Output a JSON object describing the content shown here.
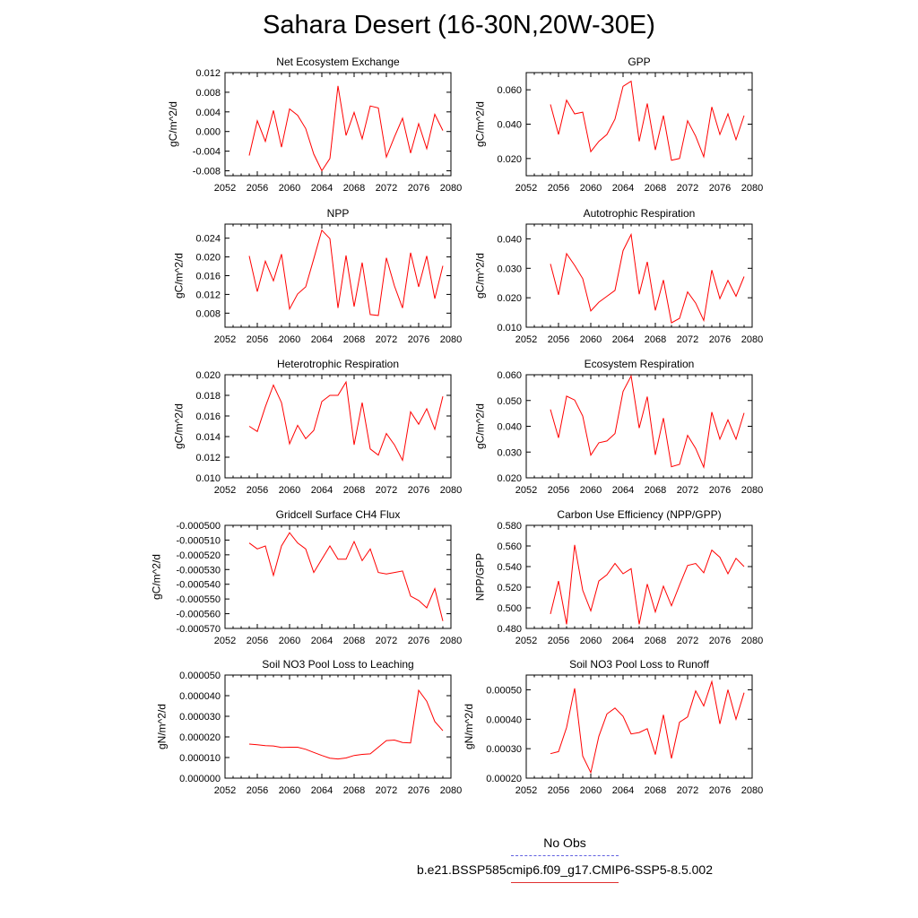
{
  "title": "Sahara Desert (16-30N,20W-30E)",
  "legend": {
    "items": [
      {
        "label": "No Obs",
        "color": "#6060e0",
        "dashed": true
      },
      {
        "label": "b.e21.BSSP585cmip6.f09_g17.CMIP6-SSP5-8.5.002",
        "color": "#e03030",
        "dashed": false
      }
    ]
  },
  "chart_data": [
    {
      "type": "line",
      "title": "Net Ecosystem Exchange",
      "ylabel": "gC/m^2/d",
      "xlabel": "",
      "xlim": [
        2052,
        2080
      ],
      "ylim": [
        -0.009,
        0.012
      ],
      "xticks": [
        "2052",
        "2056",
        "2060",
        "2064",
        "2068",
        "2072",
        "2076",
        "2080"
      ],
      "yticks": [
        "0.012",
        "0.008",
        "0.004",
        "0.000",
        "-0.004",
        "-0.008"
      ],
      "series": [
        {
          "color": "#ff0000",
          "x": [
            2055,
            2056,
            2057,
            2058,
            2059,
            2060,
            2061,
            2062,
            2063,
            2064,
            2065,
            2066,
            2067,
            2068,
            2069,
            2070,
            2071,
            2072,
            2073,
            2074,
            2075,
            2076,
            2077,
            2078,
            2079
          ],
          "y": [
            -0.0049,
            0.0022,
            -0.002,
            0.0043,
            -0.0032,
            0.0046,
            0.0033,
            0.0006,
            -0.0046,
            -0.008,
            -0.0055,
            0.0093,
            -0.0008,
            0.0039,
            -0.0015,
            0.0052,
            0.0048,
            -0.0052,
            -0.0011,
            0.0027,
            -0.0044,
            0.0016,
            -0.0035,
            0.0035,
            0.0002
          ]
        }
      ]
    },
    {
      "type": "line",
      "title": "GPP",
      "ylabel": "gC/m^2/d",
      "xlabel": "",
      "xlim": [
        2052,
        2080
      ],
      "ylim": [
        0.01,
        0.07
      ],
      "xticks": [
        "2052",
        "2056",
        "2060",
        "2064",
        "2068",
        "2072",
        "2076",
        "2080"
      ],
      "yticks": [
        "0.060",
        "0.040",
        "0.020"
      ],
      "series": [
        {
          "color": "#ff0000",
          "x": [
            2055,
            2056,
            2057,
            2058,
            2059,
            2060,
            2061,
            2062,
            2063,
            2064,
            2065,
            2066,
            2067,
            2068,
            2069,
            2070,
            2071,
            2072,
            2073,
            2074,
            2075,
            2076,
            2077,
            2078,
            2079
          ],
          "y": [
            0.0515,
            0.034,
            0.054,
            0.046,
            0.047,
            0.024,
            0.03,
            0.034,
            0.043,
            0.062,
            0.065,
            0.03,
            0.052,
            0.025,
            0.045,
            0.019,
            0.02,
            0.042,
            0.033,
            0.021,
            0.05,
            0.034,
            0.046,
            0.031,
            0.045
          ]
        }
      ]
    },
    {
      "type": "line",
      "title": "NPP",
      "ylabel": "gC/m^2/d",
      "xlabel": "",
      "xlim": [
        2052,
        2080
      ],
      "ylim": [
        0.005,
        0.027
      ],
      "xticks": [
        "2052",
        "2056",
        "2060",
        "2064",
        "2068",
        "2072",
        "2076",
        "2080"
      ],
      "yticks": [
        "0.024",
        "0.020",
        "0.016",
        "0.012",
        "0.008"
      ],
      "series": [
        {
          "color": "#ff0000",
          "x": [
            2055,
            2056,
            2057,
            2058,
            2059,
            2060,
            2061,
            2062,
            2063,
            2064,
            2065,
            2066,
            2067,
            2068,
            2069,
            2070,
            2071,
            2072,
            2073,
            2074,
            2075,
            2076,
            2077,
            2078,
            2079
          ],
          "y": [
            0.0202,
            0.0126,
            0.0191,
            0.0149,
            0.0206,
            0.0089,
            0.0121,
            0.0136,
            0.0196,
            0.0257,
            0.0239,
            0.0091,
            0.0203,
            0.0094,
            0.0188,
            0.0077,
            0.0075,
            0.0198,
            0.0138,
            0.0091,
            0.0209,
            0.0136,
            0.0202,
            0.0111,
            0.0181
          ]
        }
      ]
    },
    {
      "type": "line",
      "title": "Autotrophic Respiration",
      "ylabel": "gC/m^2/d",
      "xlabel": "",
      "xlim": [
        2052,
        2080
      ],
      "ylim": [
        0.01,
        0.045
      ],
      "xticks": [
        "2052",
        "2056",
        "2060",
        "2064",
        "2068",
        "2072",
        "2076",
        "2080"
      ],
      "yticks": [
        "0.040",
        "0.030",
        "0.020",
        "0.010"
      ],
      "series": [
        {
          "color": "#ff0000",
          "x": [
            2055,
            2056,
            2057,
            2058,
            2059,
            2060,
            2061,
            2062,
            2063,
            2064,
            2065,
            2066,
            2067,
            2068,
            2069,
            2070,
            2071,
            2072,
            2073,
            2074,
            2075,
            2076,
            2077,
            2078,
            2079
          ],
          "y": [
            0.0315,
            0.021,
            0.035,
            0.031,
            0.0265,
            0.0155,
            0.0185,
            0.0205,
            0.0225,
            0.036,
            0.0415,
            0.0212,
            0.0322,
            0.0157,
            0.026,
            0.0115,
            0.013,
            0.022,
            0.0182,
            0.0123,
            0.0294,
            0.0197,
            0.0259,
            0.0205,
            0.0272
          ]
        }
      ]
    },
    {
      "type": "line",
      "title": "Heterotrophic Respiration",
      "ylabel": "gC/m^2/d",
      "xlabel": "",
      "xlim": [
        2052,
        2080
      ],
      "ylim": [
        0.01,
        0.02
      ],
      "xticks": [
        "2052",
        "2056",
        "2060",
        "2064",
        "2068",
        "2072",
        "2076",
        "2080"
      ],
      "yticks": [
        "0.020",
        "0.018",
        "0.016",
        "0.014",
        "0.012",
        "0.010"
      ],
      "series": [
        {
          "color": "#ff0000",
          "x": [
            2055,
            2056,
            2057,
            2058,
            2059,
            2060,
            2061,
            2062,
            2063,
            2064,
            2065,
            2066,
            2067,
            2068,
            2069,
            2070,
            2071,
            2072,
            2073,
            2074,
            2075,
            2076,
            2077,
            2078,
            2079
          ],
          "y": [
            0.015,
            0.0145,
            0.0169,
            0.019,
            0.0173,
            0.0133,
            0.0151,
            0.0138,
            0.0146,
            0.0174,
            0.018,
            0.018,
            0.0193,
            0.0132,
            0.0173,
            0.0128,
            0.0122,
            0.0143,
            0.0132,
            0.0117,
            0.0164,
            0.0152,
            0.0167,
            0.0147,
            0.0179
          ]
        }
      ]
    },
    {
      "type": "line",
      "title": "Ecosystem Respiration",
      "ylabel": "gC/m^2/d",
      "xlabel": "",
      "xlim": [
        2052,
        2080
      ],
      "ylim": [
        0.02,
        0.06
      ],
      "xticks": [
        "2052",
        "2056",
        "2060",
        "2064",
        "2068",
        "2072",
        "2076",
        "2080"
      ],
      "yticks": [
        "0.060",
        "0.050",
        "0.040",
        "0.030",
        "0.020"
      ],
      "series": [
        {
          "color": "#ff0000",
          "x": [
            2055,
            2056,
            2057,
            2058,
            2059,
            2060,
            2061,
            2062,
            2063,
            2064,
            2065,
            2066,
            2067,
            2068,
            2069,
            2070,
            2071,
            2072,
            2073,
            2074,
            2075,
            2076,
            2077,
            2078,
            2079
          ],
          "y": [
            0.0465,
            0.0355,
            0.0517,
            0.0502,
            0.044,
            0.0288,
            0.0336,
            0.0343,
            0.0372,
            0.0535,
            0.0595,
            0.0393,
            0.0515,
            0.0289,
            0.0432,
            0.0243,
            0.0252,
            0.0365,
            0.0314,
            0.0241,
            0.0455,
            0.035,
            0.0425,
            0.035,
            0.0452
          ]
        }
      ]
    },
    {
      "type": "line",
      "title": "Gridcell Surface CH4 Flux",
      "ylabel": "gC/m^2/d",
      "xlabel": "",
      "xlim": [
        2052,
        2080
      ],
      "ylim": [
        -0.00057,
        -0.0005
      ],
      "xticks": [
        "2052",
        "2056",
        "2060",
        "2064",
        "2068",
        "2072",
        "2076",
        "2080"
      ],
      "yticks": [
        "-0.000500",
        "-0.000510",
        "-0.000520",
        "-0.000530",
        "-0.000540",
        "-0.000550",
        "-0.000560",
        "-0.000570"
      ],
      "series": [
        {
          "color": "#ff0000",
          "x": [
            2055,
            2056,
            2057,
            2058,
            2059,
            2060,
            2061,
            2062,
            2063,
            2064,
            2065,
            2066,
            2067,
            2068,
            2069,
            2070,
            2071,
            2072,
            2073,
            2074,
            2075,
            2076,
            2077,
            2078,
            2079
          ],
          "y": [
            -0.000512,
            -0.000516,
            -0.000514,
            -0.000534,
            -0.000514,
            -0.000505,
            -0.000512,
            -0.000516,
            -0.000532,
            -0.000523,
            -0.000514,
            -0.000523,
            -0.000523,
            -0.000511,
            -0.000524,
            -0.000516,
            -0.000532,
            -0.000533,
            -0.000532,
            -0.000531,
            -0.000548,
            -0.000551,
            -0.000556,
            -0.000543,
            -0.000565
          ]
        }
      ]
    },
    {
      "type": "line",
      "title": "Carbon Use Efficiency (NPP/GPP)",
      "ylabel": "NPP/GPP",
      "xlabel": "",
      "xlim": [
        2052,
        2080
      ],
      "ylim": [
        0.48,
        0.58
      ],
      "xticks": [
        "2052",
        "2056",
        "2060",
        "2064",
        "2068",
        "2072",
        "2076",
        "2080"
      ],
      "yticks": [
        "0.580",
        "0.560",
        "0.540",
        "0.520",
        "0.500",
        "0.480"
      ],
      "series": [
        {
          "color": "#ff0000",
          "x": [
            2055,
            2056,
            2057,
            2058,
            2059,
            2060,
            2061,
            2062,
            2063,
            2064,
            2065,
            2066,
            2067,
            2068,
            2069,
            2070,
            2071,
            2072,
            2073,
            2074,
            2075,
            2076,
            2077,
            2078,
            2079
          ],
          "y": [
            0.494,
            0.526,
            0.484,
            0.561,
            0.517,
            0.497,
            0.526,
            0.532,
            0.543,
            0.533,
            0.538,
            0.484,
            0.523,
            0.496,
            0.521,
            0.502,
            0.522,
            0.541,
            0.543,
            0.534,
            0.556,
            0.549,
            0.533,
            0.548,
            0.54
          ]
        }
      ]
    },
    {
      "type": "line",
      "title": "Soil NO3 Pool Loss to Leaching",
      "ylabel": "gN/m^2/d",
      "xlabel": "",
      "xlim": [
        2052,
        2080
      ],
      "ylim": [
        0,
        5e-05
      ],
      "xticks": [
        "2052",
        "2056",
        "2060",
        "2064",
        "2068",
        "2072",
        "2076",
        "2080"
      ],
      "yticks": [
        "0.000050",
        "0.000040",
        "0.000030",
        "0.000020",
        "0.000010",
        "0.000000"
      ],
      "series": [
        {
          "color": "#ff0000",
          "x": [
            2055,
            2056,
            2057,
            2058,
            2059,
            2060,
            2061,
            2062,
            2063,
            2064,
            2065,
            2066,
            2067,
            2068,
            2069,
            2070,
            2071,
            2072,
            2073,
            2074,
            2075,
            2076,
            2077,
            2078,
            2079
          ],
          "y": [
            1.65e-05,
            1.62e-05,
            1.58e-05,
            1.56e-05,
            1.49e-05,
            1.5e-05,
            1.5e-05,
            1.4e-05,
            1.25e-05,
            1.1e-05,
            9.7e-06,
            9.3e-06,
            9.8e-06,
            1.1e-05,
            1.15e-05,
            1.18e-05,
            1.5e-05,
            1.82e-05,
            1.85e-05,
            1.73e-05,
            1.71e-05,
            4.26e-05,
            3.73e-05,
            2.75e-05,
            2.3e-05
          ]
        }
      ]
    },
    {
      "type": "line",
      "title": "Soil NO3 Pool Loss to Runoff",
      "ylabel": "gN/m^2/d",
      "xlabel": "",
      "xlim": [
        2052,
        2080
      ],
      "ylim": [
        0.0002,
        0.00055
      ],
      "xticks": [
        "2052",
        "2056",
        "2060",
        "2064",
        "2068",
        "2072",
        "2076",
        "2080"
      ],
      "yticks": [
        "0.00050",
        "0.00040",
        "0.00030",
        "0.00020"
      ],
      "series": [
        {
          "color": "#ff0000",
          "x": [
            2055,
            2056,
            2057,
            2058,
            2059,
            2060,
            2061,
            2062,
            2063,
            2064,
            2065,
            2066,
            2067,
            2068,
            2069,
            2070,
            2071,
            2072,
            2073,
            2074,
            2075,
            2076,
            2077,
            2078,
            2079
          ],
          "y": [
            0.000283,
            0.00029,
            0.000372,
            0.000505,
            0.000275,
            0.000219,
            0.000342,
            0.000418,
            0.000438,
            0.00041,
            0.00035,
            0.000355,
            0.000368,
            0.00028,
            0.000415,
            0.000267,
            0.00039,
            0.000408,
            0.000496,
            0.000445,
            0.000528,
            0.000384,
            0.0005,
            0.0004,
            0.00049
          ]
        }
      ]
    }
  ]
}
